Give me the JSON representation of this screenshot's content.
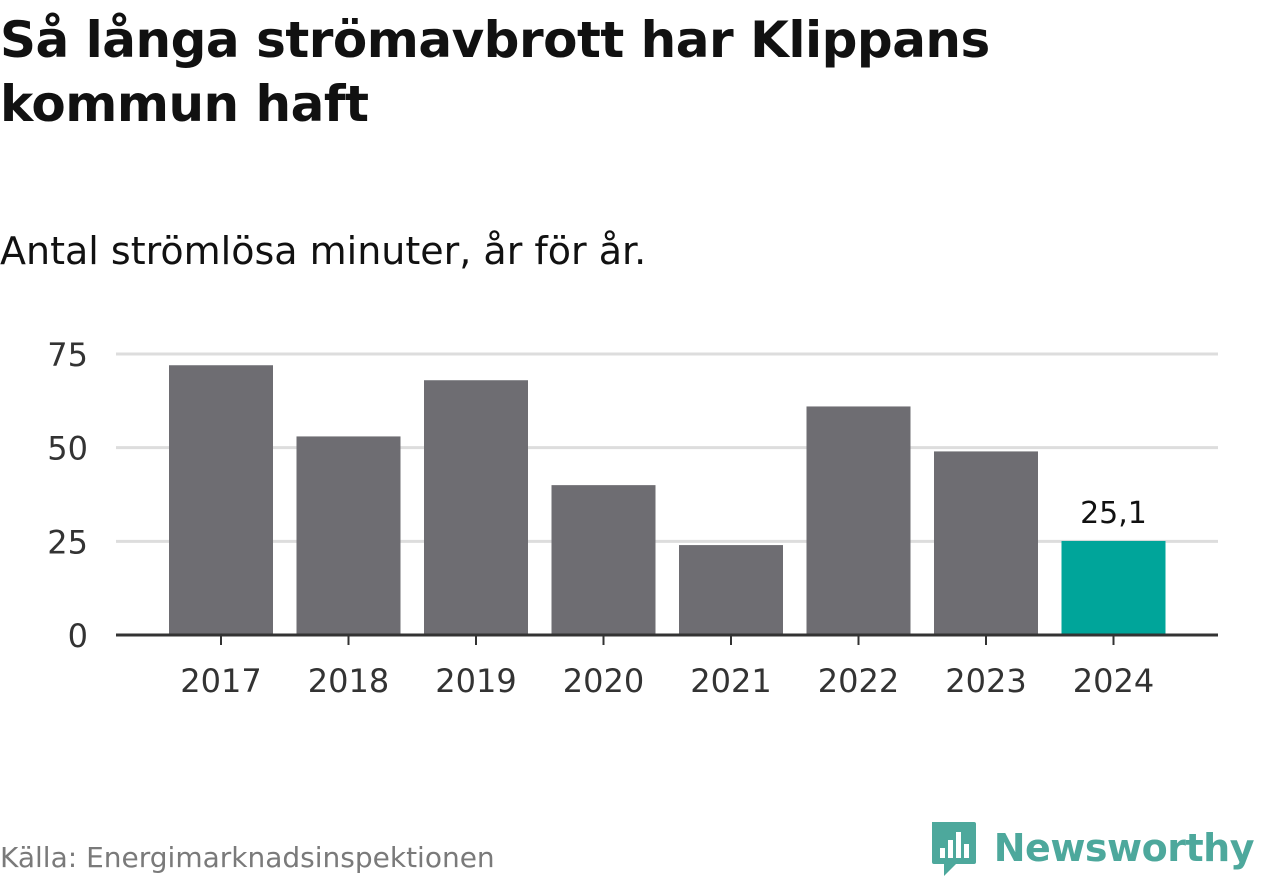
{
  "title": "Så långa strömavbrott har Klippans kommun haft",
  "subtitle": "Antal strömlösa minuter, år för år.",
  "source": "Källa: Energimarknadsinspektionen",
  "brand": {
    "name": "Newsworthy",
    "icon": "newsworthy-chart-icon"
  },
  "colors": {
    "bar": "#6e6d72",
    "highlight": "#00a59a",
    "grid": "#dddddd",
    "axis": "#333333",
    "brand": "#4da89c"
  },
  "chart_data": {
    "type": "bar",
    "title": "Så långa strömavbrott har Klippans kommun haft",
    "subtitle": "Antal strömlösa minuter, år för år.",
    "xlabel": "",
    "ylabel": "",
    "ylim": [
      0,
      75
    ],
    "yticks": [
      0,
      25,
      50,
      75
    ],
    "grid": true,
    "categories": [
      "2017",
      "2018",
      "2019",
      "2020",
      "2021",
      "2022",
      "2023",
      "2024"
    ],
    "values": [
      72,
      53,
      68,
      40,
      24,
      61,
      49,
      25.1
    ],
    "highlight_index": 7,
    "data_labels": [
      {
        "index": 7,
        "text": "25,1"
      }
    ]
  }
}
